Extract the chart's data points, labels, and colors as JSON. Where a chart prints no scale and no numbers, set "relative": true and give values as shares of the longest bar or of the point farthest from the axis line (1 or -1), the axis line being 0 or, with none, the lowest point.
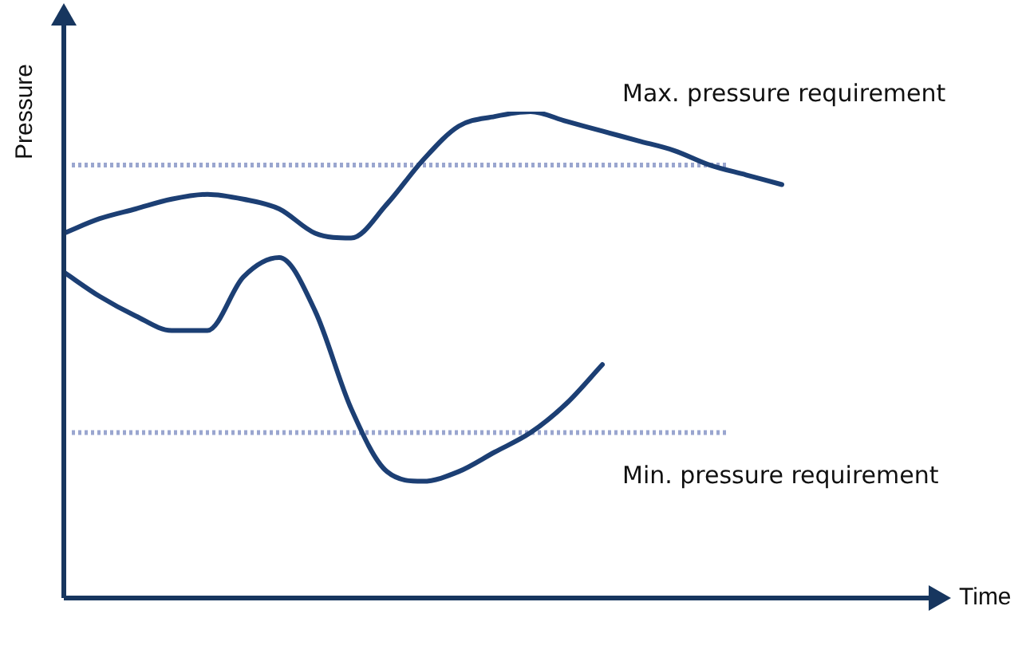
{
  "chart_data": {
    "type": "line",
    "relative": true,
    "xlabel": "Time",
    "ylabel": "Pressure",
    "legend": false,
    "marker": "none",
    "line_style": "solid",
    "categories": [
      null,
      null,
      null,
      null,
      null,
      null,
      null,
      null,
      null,
      null,
      null,
      null,
      null,
      null,
      null,
      null,
      null,
      null,
      null,
      null,
      null,
      null,
      null,
      null,
      null
    ],
    "series": [
      {
        "color": "#1c3f74",
        "values": [
          0.75,
          0.78,
          0.8,
          0.82,
          0.83,
          0.82,
          0.8,
          0.75,
          0.74,
          0.81,
          0.9,
          0.97,
          0.99,
          1,
          0.98,
          0.96,
          0.94,
          0.92,
          0.89,
          0.87,
          0.85,
          null,
          null,
          null,
          null
        ]
      },
      {
        "color": "#1c3f74",
        "values": [
          0.67,
          0.62,
          0.58,
          0.55,
          0.55,
          0.66,
          0.7,
          0.59,
          0.39,
          0.26,
          0.24,
          0.26,
          0.3,
          0.34,
          0.4,
          0.48,
          null,
          null,
          null,
          null,
          null,
          null,
          null,
          null,
          null
        ]
      }
    ],
    "ref_lines": [
      {
        "axis": "y",
        "value": 0.89,
        "label": "Max. pressure requirement",
        "color": "#9aa6cf",
        "line_style": "dotted"
      },
      {
        "axis": "y",
        "value": 0.34,
        "label": "Min. pressure requirement",
        "color": "#9aa6cf",
        "line_style": "dotted"
      }
    ]
  }
}
